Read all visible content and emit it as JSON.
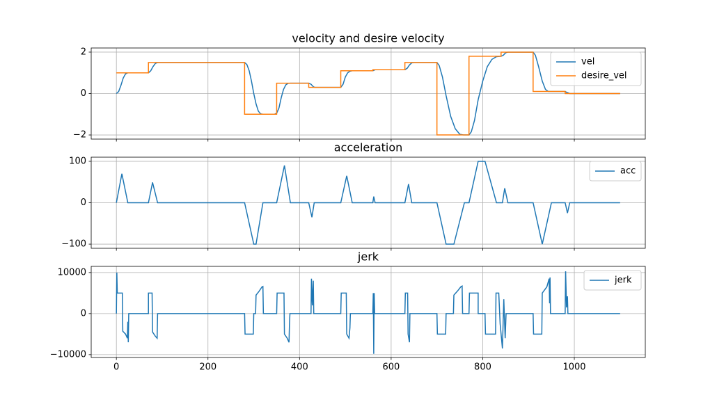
{
  "chart_data": [
    {
      "type": "line",
      "title": "velocity and desire velocity",
      "grid": true,
      "legend": "upper right",
      "xticklabels": false,
      "xlim": [
        -55,
        1155
      ],
      "xticks": [
        0,
        200,
        400,
        600,
        800,
        1000
      ],
      "ylim": [
        -2.2,
        2.2
      ],
      "yticks": [
        {
          "value": -2,
          "label": "−2"
        },
        0,
        2
      ],
      "series": [
        {
          "name": "vel",
          "color": "#1f77b4",
          "x": [
            0,
            5,
            10,
            15,
            20,
            25,
            70,
            75,
            80,
            85,
            90,
            280,
            285,
            290,
            295,
            300,
            305,
            310,
            315,
            320,
            345,
            350,
            355,
            360,
            365,
            370,
            375,
            380,
            420,
            425,
            430,
            433,
            490,
            495,
            500,
            505,
            510,
            515,
            560,
            565,
            630,
            635,
            640,
            645,
            650,
            700,
            705,
            712,
            720,
            730,
            740,
            750,
            758,
            770,
            775,
            782,
            790,
            800,
            810,
            820,
            830,
            840,
            845,
            850,
            855,
            910,
            915,
            922,
            930,
            937,
            943,
            980,
            984,
            990,
            1100
          ],
          "values": [
            0,
            0.1,
            0.4,
            0.75,
            0.95,
            1.0,
            1.0,
            1.1,
            1.3,
            1.45,
            1.5,
            1.5,
            1.4,
            1.1,
            0.6,
            0.0,
            -0.5,
            -0.85,
            -0.98,
            -1.0,
            -1.0,
            -0.95,
            -0.7,
            -0.2,
            0.2,
            0.42,
            0.49,
            0.5,
            0.5,
            0.45,
            0.33,
            0.3,
            0.3,
            0.45,
            0.8,
            1.0,
            1.08,
            1.1,
            1.1,
            1.15,
            1.15,
            1.22,
            1.38,
            1.48,
            1.5,
            1.5,
            1.35,
            0.8,
            -0.1,
            -1.1,
            -1.7,
            -1.97,
            -2.0,
            -2.0,
            -1.85,
            -1.3,
            -0.3,
            0.6,
            1.3,
            1.65,
            1.78,
            1.8,
            1.85,
            1.97,
            2.0,
            2.0,
            1.85,
            1.3,
            0.6,
            0.2,
            0.1,
            0.1,
            0.05,
            0.0,
            0
          ]
        },
        {
          "name": "desire_vel",
          "color": "#ff7f0e",
          "x": [
            0,
            70,
            70,
            280,
            280,
            350,
            350,
            420,
            420,
            490,
            490,
            560,
            560,
            630,
            630,
            700,
            700,
            770,
            770,
            840,
            840,
            910,
            910,
            980,
            980,
            1100
          ],
          "values": [
            1,
            1,
            1.5,
            1.5,
            -1,
            -1,
            0.5,
            0.5,
            0.3,
            0.3,
            1.1,
            1.1,
            1.15,
            1.15,
            1.5,
            1.5,
            -2,
            -2,
            1.8,
            1.8,
            2,
            2,
            0.1,
            0.1,
            0,
            0
          ]
        }
      ]
    },
    {
      "type": "line",
      "title": "acceleration",
      "grid": true,
      "legend": "upper right",
      "xticklabels": false,
      "xlim": [
        -55,
        1155
      ],
      "xticks": [
        0,
        200,
        400,
        600,
        800,
        1000
      ],
      "ylim": [
        -110,
        110
      ],
      "yticks": [
        {
          "value": -100,
          "label": "−100"
        },
        0,
        100
      ],
      "series": [
        {
          "name": "acc",
          "color": "#1f77b4",
          "x": [
            0,
            12,
            25,
            70,
            79,
            90,
            280,
            300,
            305,
            320,
            350,
            367,
            380,
            420,
            427,
            432,
            490,
            503,
            515,
            560,
            562,
            565,
            630,
            638,
            645,
            700,
            720,
            737,
            760,
            770,
            790,
            805,
            830,
            843,
            848,
            855,
            910,
            930,
            950,
            980,
            985,
            990,
            1100
          ],
          "values": [
            0,
            70,
            0,
            0,
            49,
            0,
            0,
            -100,
            -100,
            0,
            0,
            90,
            0,
            0,
            -35,
            0,
            0,
            65,
            0,
            0,
            15,
            0,
            0,
            45,
            0,
            0,
            -100,
            -100,
            0,
            0,
            100,
            100,
            0,
            0,
            35,
            0,
            0,
            -100,
            0,
            0,
            -25,
            0,
            0
          ]
        }
      ]
    },
    {
      "type": "line",
      "title": "jerk",
      "grid": true,
      "legend": "upper right",
      "xlim": [
        -55,
        1155
      ],
      "xticks": [
        0,
        200,
        400,
        600,
        800,
        1000
      ],
      "ylim": [
        -10700,
        11500
      ],
      "yticks": [
        {
          "value": -10000,
          "label": "−10000"
        },
        0,
        10000
      ],
      "series": [
        {
          "name": "jerk",
          "color": "#1f77b4",
          "x": [
            0,
            1,
            2,
            13,
            14,
            20,
            24,
            25,
            26,
            27,
            70,
            70,
            78,
            79,
            85,
            89,
            90,
            280,
            281,
            299,
            300,
            304,
            305,
            312,
            318,
            320,
            321,
            350,
            351,
            366,
            367,
            373,
            377,
            378,
            379,
            425,
            426,
            428,
            430,
            431,
            490,
            491,
            502,
            503,
            508,
            510,
            511,
            560,
            561,
            562,
            563,
            564,
            630,
            631,
            636,
            637,
            640,
            641,
            700,
            701,
            719,
            720,
            736,
            737,
            745,
            752,
            755,
            756,
            770,
            771,
            790,
            790,
            805,
            806,
            828,
            829,
            835,
            838,
            843,
            846,
            849,
            851,
            910,
            911,
            929,
            930,
            940,
            945,
            946,
            947,
            948,
            980,
            981,
            983,
            985,
            986,
            1100
          ],
          "values": [
            0,
            10000,
            5000,
            5000,
            -4300,
            -5000,
            -6000,
            -2000,
            -7000,
            0,
            0,
            5000,
            5000,
            -4500,
            -5500,
            -6000,
            0,
            0,
            -5000,
            -5000,
            0,
            0,
            4500,
            5500,
            6500,
            6600,
            0,
            0,
            5000,
            5000,
            -5000,
            -6000,
            -7000,
            -2500,
            0,
            0,
            8500,
            2000,
            8000,
            0,
            0,
            5000,
            5000,
            -5000,
            -6000,
            -3500,
            0,
            0,
            5000,
            -9800,
            5000,
            0,
            0,
            5000,
            5000,
            -5000,
            -7000,
            0,
            0,
            -5000,
            -5000,
            0,
            0,
            4500,
            5500,
            6500,
            6700,
            0,
            0,
            5000,
            5000,
            0,
            0,
            -5000,
            -5000,
            5000,
            5000,
            -2500,
            -8500,
            3500,
            -6000,
            0,
            0,
            -5000,
            -5000,
            5000,
            6500,
            8500,
            2500,
            8800,
            0,
            0,
            10300,
            1500,
            4200,
            0,
            0
          ]
        }
      ]
    }
  ]
}
